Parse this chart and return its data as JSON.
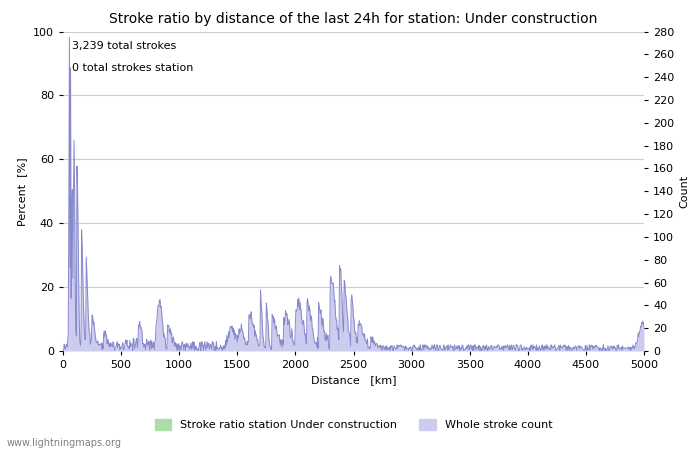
{
  "title": "Stroke ratio by distance of the last 24h for station: Under construction",
  "xlabel": "Distance   [km]",
  "ylabel_left": "Percent  [%]",
  "ylabel_right": "Count",
  "annotation_line1": "3,239 total strokes",
  "annotation_line2": "0 total strokes station",
  "xlim": [
    0,
    5000
  ],
  "ylim_left": [
    0,
    100
  ],
  "ylim_right": [
    0,
    280
  ],
  "xticks": [
    0,
    500,
    1000,
    1500,
    2000,
    2500,
    3000,
    3500,
    4000,
    4500,
    5000
  ],
  "yticks_left": [
    0,
    20,
    40,
    60,
    80,
    100
  ],
  "yticks_right": [
    0,
    20,
    40,
    60,
    80,
    100,
    120,
    140,
    160,
    180,
    200,
    220,
    240,
    260,
    280
  ],
  "legend_label_green": "Stroke ratio station Under construction",
  "legend_label_blue": "Whole stroke count",
  "fill_green_color": "#aaddaa",
  "fill_blue_color": "#ccccee",
  "line_color": "#8888cc",
  "bg_color": "#ffffff",
  "grid_color": "#cccccc",
  "watermark": "www.lightningmaps.org",
  "title_fontsize": 10,
  "label_fontsize": 8,
  "tick_fontsize": 8
}
